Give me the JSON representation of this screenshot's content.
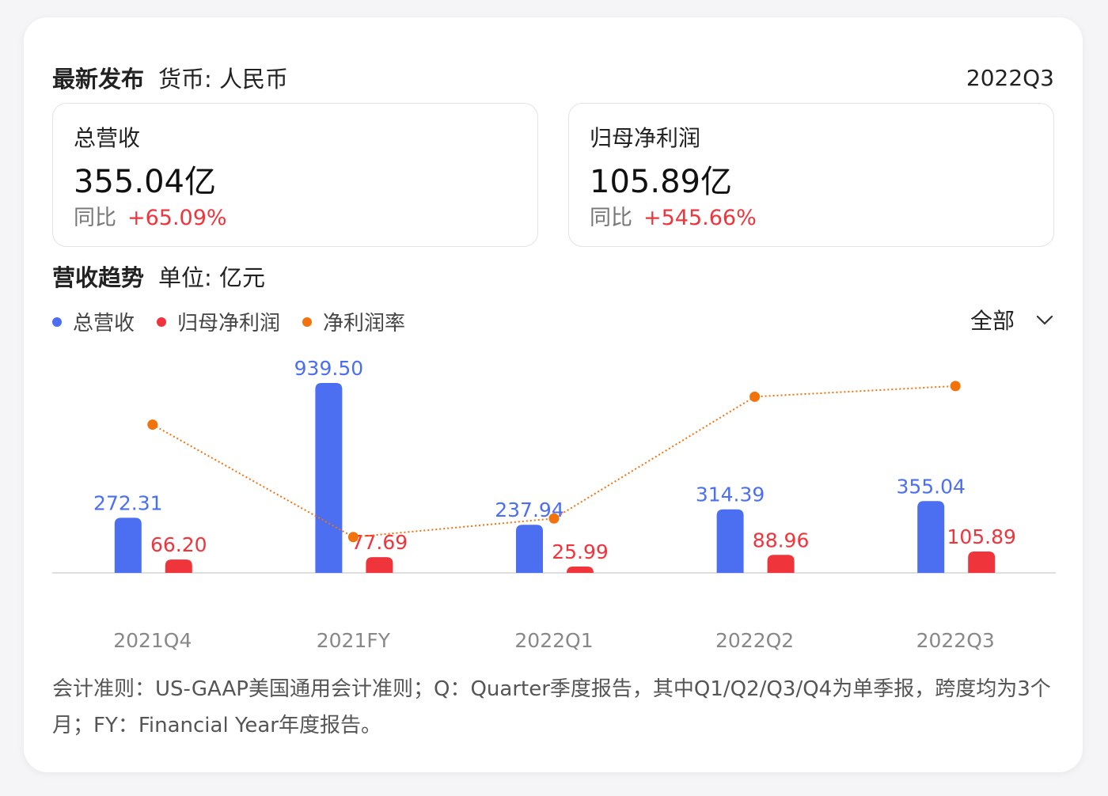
{
  "header": {
    "title": "最新发布",
    "currency": "货币: 人民币",
    "period": "2022Q3"
  },
  "metrics": [
    {
      "label": "总营收",
      "value": "355.04亿",
      "yoy_label": "同比",
      "yoy_value": "+65.09%"
    },
    {
      "label": "归母净利润",
      "value": "105.89亿",
      "yoy_label": "同比",
      "yoy_value": "+545.66%"
    }
  ],
  "section": {
    "title": "营收趋势",
    "unit": "单位: 亿元"
  },
  "legend": [
    {
      "label": "总营收",
      "color": "#4b6ff0"
    },
    {
      "label": "归母净利润",
      "color": "#f0343c"
    },
    {
      "label": "净利润率",
      "color": "#f2720c"
    }
  ],
  "filter": {
    "label": "全部",
    "icon": "chevron-down-icon"
  },
  "chart_data": {
    "type": "bar",
    "categories": [
      "2021Q4",
      "2021FY",
      "2022Q1",
      "2022Q2",
      "2022Q3"
    ],
    "series": [
      {
        "name": "总营收",
        "kind": "bar",
        "color": "#4b6ff0",
        "values": [
          272.31,
          939.5,
          237.94,
          314.39,
          355.04
        ],
        "labels": [
          "272.31",
          "939.50",
          "237.94",
          "314.39",
          "355.04"
        ]
      },
      {
        "name": "归母净利润",
        "kind": "bar",
        "color": "#f0343c",
        "values": [
          66.2,
          77.69,
          25.99,
          88.96,
          105.89
        ],
        "labels": [
          "66.20",
          "77.69",
          "25.99",
          "88.96",
          "105.89"
        ]
      },
      {
        "name": "净利润率",
        "kind": "line",
        "color": "#f2720c",
        "values": [
          24.31,
          8.27,
          10.92,
          28.3,
          29.82
        ]
      }
    ],
    "grid": false,
    "legend_position": "top-left"
  },
  "note": "会计准则：US-GAAP美国通用会计准则；Q：Quarter季度报告，其中Q1/Q2/Q3/Q4为单季报，跨度均为3个月；FY：Financial Year年度报告。"
}
